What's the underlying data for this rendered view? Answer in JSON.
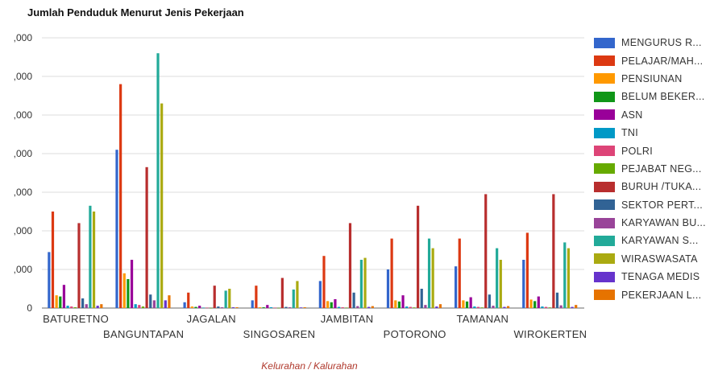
{
  "chart_data": {
    "type": "bar",
    "title": "Jumlah Penduduk Menurut Jenis Pekerjaan",
    "xlabel": "Kelurahan / Kalurahan",
    "ylabel": "",
    "ylim": [
      0,
      7000
    ],
    "y_tick_labels": [
      "0",
      ",000",
      ",000",
      ",000",
      ",000",
      ",000",
      ",000",
      ",000"
    ],
    "grid": true,
    "legend_position": "right",
    "categories": [
      "BATURETNO",
      "BANGUNTAPAN",
      "JAGALAN",
      "SINGOSAREN",
      "JAMBITAN",
      "POTORONO",
      "TAMANAN",
      "WIROKERTEN"
    ],
    "series": [
      {
        "name": "MENGURUS R...",
        "color": "#3366cc",
        "values": [
          1450,
          4100,
          150,
          200,
          700,
          1000,
          1080,
          1250
        ]
      },
      {
        "name": "PELAJAR/MAH...",
        "color": "#dc3912",
        "values": [
          2500,
          5800,
          400,
          580,
          1350,
          1800,
          1800,
          1950
        ]
      },
      {
        "name": "PENSIUNAN",
        "color": "#ff9900",
        "values": [
          330,
          900,
          40,
          20,
          180,
          200,
          200,
          220
        ]
      },
      {
        "name": "BELUM BEKER...",
        "color": "#109618",
        "values": [
          300,
          750,
          30,
          20,
          150,
          170,
          170,
          180
        ]
      },
      {
        "name": "ASN",
        "color": "#990099",
        "values": [
          600,
          1250,
          60,
          80,
          230,
          330,
          280,
          300
        ]
      },
      {
        "name": "TNI",
        "color": "#0099c6",
        "values": [
          60,
          100,
          10,
          20,
          30,
          40,
          40,
          40
        ]
      },
      {
        "name": "POLRI",
        "color": "#dd4477",
        "values": [
          40,
          80,
          10,
          10,
          20,
          30,
          30,
          30
        ]
      },
      {
        "name": "PEJABAT NEG...",
        "color": "#66aa00",
        "values": [
          20,
          40,
          5,
          5,
          10,
          15,
          15,
          15
        ]
      },
      {
        "name": "BURUH /TUKA...",
        "color": "#b82e2e",
        "values": [
          2200,
          3650,
          580,
          780,
          2200,
          2650,
          2950,
          2950
        ]
      },
      {
        "name": "SEKTOR PERT...",
        "color": "#316395",
        "values": [
          250,
          350,
          40,
          30,
          400,
          500,
          350,
          400
        ]
      },
      {
        "name": "KARYAWAN BU...",
        "color": "#994499",
        "values": [
          100,
          200,
          20,
          20,
          50,
          80,
          60,
          70
        ]
      },
      {
        "name": "KARYAWAN S...",
        "color": "#22aa99",
        "values": [
          2650,
          6600,
          450,
          480,
          1250,
          1800,
          1550,
          1700
        ]
      },
      {
        "name": "WIRASWASATA",
        "color": "#aaaa11",
        "values": [
          2500,
          5300,
          500,
          700,
          1300,
          1550,
          1250,
          1550
        ]
      },
      {
        "name": "TENAGA MEDIS",
        "color": "#6633cc",
        "values": [
          60,
          200,
          20,
          15,
          30,
          40,
          30,
          30
        ]
      },
      {
        "name": "PEKERJAAN L...",
        "color": "#e67300",
        "values": [
          100,
          330,
          20,
          20,
          50,
          100,
          50,
          80
        ]
      }
    ]
  }
}
